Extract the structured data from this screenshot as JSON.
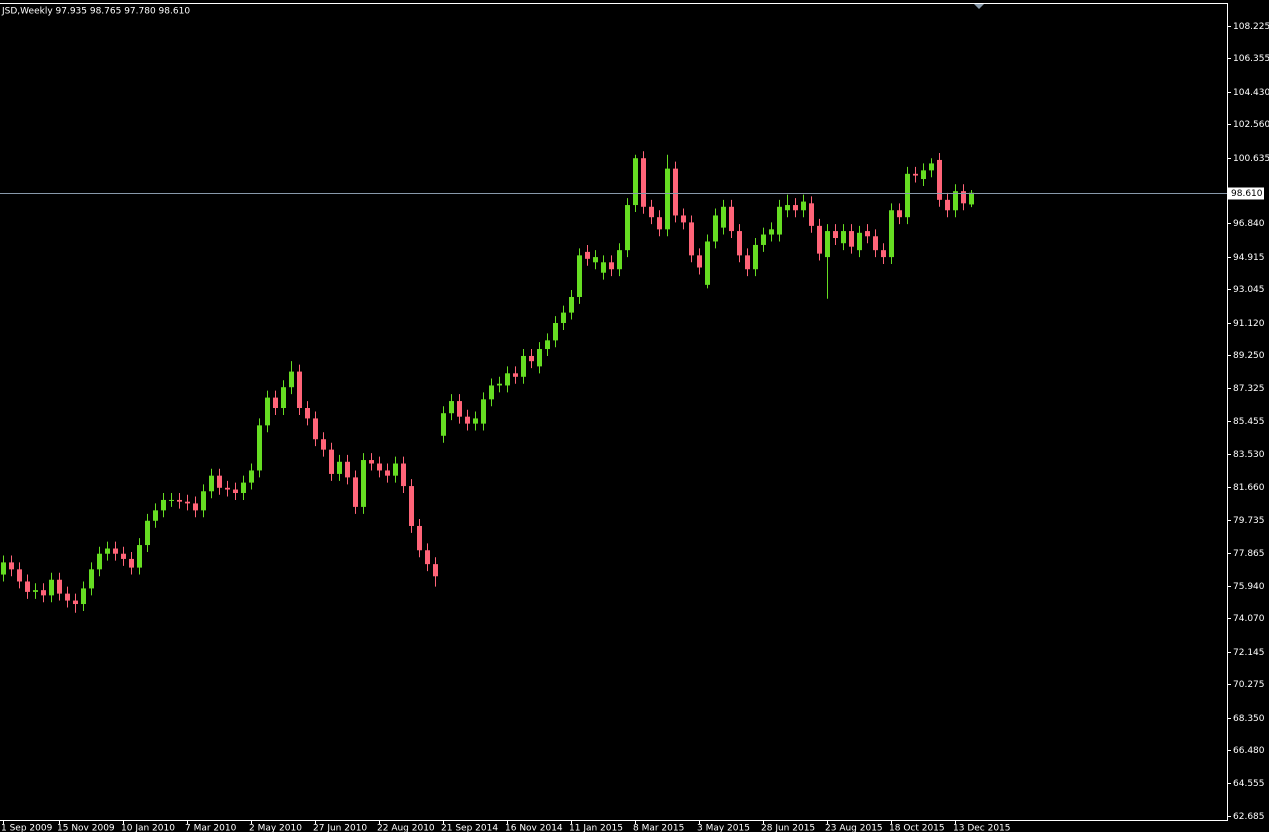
{
  "chart_data": {
    "type": "candlestick",
    "title": "JSD,Weekly  97.935 98.765 97.780 98.610",
    "categories": [
      "1 Sep 2009",
      null,
      null,
      null,
      null,
      null,
      null,
      "15 Nov 2009",
      null,
      null,
      null,
      null,
      null,
      null,
      null,
      "10 Jan 2010",
      null,
      null,
      null,
      null,
      null,
      null,
      null,
      "7 Mar 2010",
      null,
      null,
      null,
      null,
      null,
      null,
      null,
      "2 May 2010",
      null,
      null,
      null,
      null,
      null,
      null,
      null,
      "27 Jun 2010",
      null,
      null,
      null,
      null,
      null,
      null,
      null,
      "22 Aug 2010",
      null,
      null,
      null,
      null,
      null,
      null,
      null,
      "21 Sep 2014",
      null,
      null,
      null,
      null,
      null,
      null,
      null,
      "16 Nov 2014",
      null,
      null,
      null,
      null,
      null,
      null,
      null,
      "11 Jan 2015",
      null,
      null,
      null,
      null,
      null,
      null,
      null,
      "8 Mar 2015",
      null,
      null,
      null,
      null,
      null,
      null,
      null,
      "3 May 2015",
      null,
      null,
      null,
      null,
      null,
      null,
      null,
      "28 Jun 2015",
      null,
      null,
      null,
      null,
      null,
      null,
      null,
      "23 Aug 2015",
      null,
      null,
      null,
      null,
      null,
      null,
      null,
      "18 Oct 2015",
      null,
      null,
      null,
      null,
      null,
      null,
      null,
      "13 Dec 2015",
      null,
      null
    ],
    "open": [
      76.6,
      77.3,
      76.9,
      76.2,
      75.6,
      75.7,
      75.4,
      76.3,
      75.5,
      75.1,
      74.9,
      75.8,
      76.9,
      77.8,
      78.1,
      77.8,
      77.5,
      77.0,
      78.3,
      79.7,
      80.3,
      80.9,
      80.9,
      80.8,
      80.7,
      80.3,
      81.4,
      82.3,
      81.6,
      81.5,
      81.3,
      81.9,
      82.6,
      85.2,
      86.8,
      86.2,
      87.4,
      88.3,
      86.2,
      85.6,
      84.4,
      83.8,
      82.4,
      83.1,
      82.2,
      80.5,
      83.2,
      83.0,
      82.6,
      82.3,
      83.0,
      81.7,
      79.4,
      78.0,
      77.2,
      84.6,
      85.9,
      86.6,
      85.7,
      85.3,
      85.3,
      86.7,
      87.5,
      87.5,
      88.2,
      88.0,
      89.2,
      88.6,
      89.6,
      90.1,
      91.1,
      91.7,
      92.6,
      95.2,
      94.6,
      94.0,
      94.6,
      94.2,
      95.3,
      97.9,
      100.6,
      97.8,
      97.2,
      96.5,
      100.0,
      97.3,
      96.9,
      95.0,
      93.3,
      95.8,
      96.6,
      97.8,
      96.4,
      95.0,
      94.2,
      95.6,
      96.2,
      96.2,
      97.6,
      97.9,
      97.6,
      98.0,
      96.7,
      94.9,
      96.4,
      95.7,
      96.4,
      95.3,
      96.4,
      96.1,
      95.3,
      94.9,
      97.6,
      97.2,
      99.7,
      99.4,
      99.9,
      100.5,
      98.2,
      97.6,
      98.7,
      97.935
    ],
    "high": [
      77.7,
      77.7,
      77.3,
      76.6,
      76.1,
      76.1,
      76.7,
      76.7,
      75.9,
      75.5,
      76.2,
      77.3,
      78.2,
      78.5,
      78.5,
      78.2,
      77.9,
      78.7,
      80.1,
      80.7,
      81.3,
      81.3,
      81.3,
      81.2,
      81.1,
      81.8,
      82.7,
      82.7,
      82.0,
      81.9,
      82.3,
      83.0,
      85.6,
      87.2,
      87.2,
      87.8,
      88.9,
      88.7,
      86.6,
      86.0,
      84.8,
      84.2,
      83.5,
      83.5,
      82.6,
      83.6,
      83.6,
      83.4,
      83.0,
      83.4,
      83.4,
      82.1,
      79.8,
      78.4,
      77.6,
      86.3,
      87.0,
      87.0,
      86.1,
      86.0,
      87.1,
      87.9,
      88.0,
      88.6,
      88.6,
      89.6,
      89.6,
      90.0,
      90.5,
      91.5,
      92.1,
      93.0,
      95.4,
      95.6,
      95.3,
      95.0,
      95.0,
      95.7,
      98.3,
      100.8,
      101.0,
      98.2,
      97.6,
      100.8,
      100.4,
      97.7,
      97.3,
      95.4,
      96.2,
      97.7,
      98.2,
      98.2,
      96.8,
      95.4,
      96.0,
      96.6,
      96.9,
      98.2,
      98.5,
      98.3,
      98.5,
      98.4,
      97.1,
      96.8,
      96.8,
      96.8,
      96.8,
      96.7,
      96.8,
      96.5,
      95.7,
      98.0,
      98.0,
      100.1,
      100.1,
      100.3,
      100.6,
      100.9,
      98.6,
      99.1,
      99.1,
      98.765
    ],
    "low": [
      76.2,
      76.5,
      75.8,
      75.2,
      75.2,
      75.0,
      75.0,
      75.1,
      74.7,
      74.4,
      74.5,
      75.4,
      76.5,
      77.4,
      77.4,
      77.1,
      76.6,
      76.6,
      77.9,
      79.3,
      79.9,
      80.5,
      80.4,
      80.3,
      79.9,
      79.9,
      81.0,
      81.2,
      81.1,
      80.9,
      80.9,
      81.5,
      82.2,
      84.8,
      85.8,
      85.8,
      87.0,
      85.8,
      85.2,
      84.0,
      83.4,
      82.0,
      82.0,
      81.8,
      80.1,
      80.1,
      82.6,
      82.2,
      81.9,
      81.9,
      81.3,
      79.0,
      77.6,
      76.8,
      75.9,
      84.2,
      85.5,
      85.3,
      84.9,
      84.9,
      84.9,
      86.3,
      87.1,
      87.1,
      87.6,
      87.6,
      88.5,
      88.2,
      89.2,
      89.7,
      90.7,
      91.3,
      92.2,
      94.4,
      94.2,
      93.6,
      93.8,
      93.8,
      94.9,
      97.5,
      97.4,
      96.8,
      96.1,
      96.1,
      96.9,
      96.5,
      94.6,
      93.9,
      93.1,
      95.4,
      96.2,
      96.0,
      94.6,
      93.8,
      93.8,
      95.2,
      95.8,
      95.8,
      97.2,
      97.2,
      97.2,
      96.3,
      94.7,
      92.5,
      95.6,
      95.3,
      95.1,
      94.9,
      95.7,
      94.9,
      94.5,
      94.5,
      96.8,
      96.8,
      99.2,
      99.0,
      99.5,
      97.8,
      97.2,
      97.2,
      97.6,
      97.78
    ],
    "close": [
      77.3,
      76.9,
      76.2,
      75.6,
      75.7,
      75.4,
      76.3,
      75.5,
      75.1,
      74.9,
      75.8,
      76.9,
      77.8,
      78.1,
      77.8,
      77.5,
      77.0,
      78.3,
      79.7,
      80.3,
      80.9,
      80.9,
      80.8,
      80.7,
      80.3,
      81.4,
      82.3,
      81.6,
      81.5,
      81.3,
      81.9,
      82.6,
      85.2,
      86.8,
      86.2,
      87.4,
      88.3,
      86.2,
      85.6,
      84.4,
      83.8,
      82.4,
      83.1,
      82.2,
      80.5,
      83.2,
      83.0,
      82.6,
      82.3,
      83.0,
      81.7,
      79.4,
      78.0,
      77.2,
      76.5,
      85.9,
      86.6,
      85.7,
      85.3,
      85.6,
      86.7,
      87.5,
      87.6,
      88.2,
      88.0,
      89.2,
      88.9,
      89.6,
      90.1,
      91.1,
      91.7,
      92.6,
      95.0,
      94.8,
      94.9,
      94.6,
      94.2,
      95.3,
      97.9,
      100.6,
      97.8,
      97.2,
      96.5,
      100.0,
      97.3,
      96.9,
      95.0,
      94.3,
      95.8,
      97.3,
      97.8,
      96.4,
      95.0,
      94.2,
      95.6,
      96.2,
      96.5,
      97.8,
      97.9,
      97.6,
      98.1,
      96.7,
      95.1,
      96.4,
      96.0,
      96.4,
      95.5,
      96.3,
      96.1,
      95.3,
      94.9,
      97.6,
      97.2,
      99.7,
      99.6,
      99.9,
      100.3,
      98.2,
      97.6,
      98.7,
      98.0,
      98.61
    ],
    "up_color": "#66dd22",
    "down_color": "#ff6478",
    "ylim": [
      62.45,
      109.49
    ],
    "yticks": [
      108.225,
      106.355,
      {
        "value": 104.43,
        "label": "104.430"
      },
      {
        "value": 102.56,
        "label": "102.560"
      },
      100.635,
      {
        "value": 96.84,
        "label": "96.840"
      },
      94.915,
      93.045,
      {
        "value": 91.12,
        "label": "91.120"
      },
      {
        "value": 89.25,
        "label": "89.250"
      },
      87.325,
      85.455,
      {
        "value": 83.53,
        "label": "83.530"
      },
      {
        "value": 81.66,
        "label": "81.660"
      },
      79.735,
      77.865,
      {
        "value": 75.94,
        "label": "75.940"
      },
      {
        "value": 74.07,
        "label": "74.070"
      },
      72.145,
      70.275,
      {
        "value": 68.35,
        "label": "68.350"
      },
      {
        "value": 66.48,
        "label": "66.480"
      },
      64.555,
      62.685
    ],
    "bid_line": {
      "value": 98.61,
      "label": "98.610"
    }
  }
}
